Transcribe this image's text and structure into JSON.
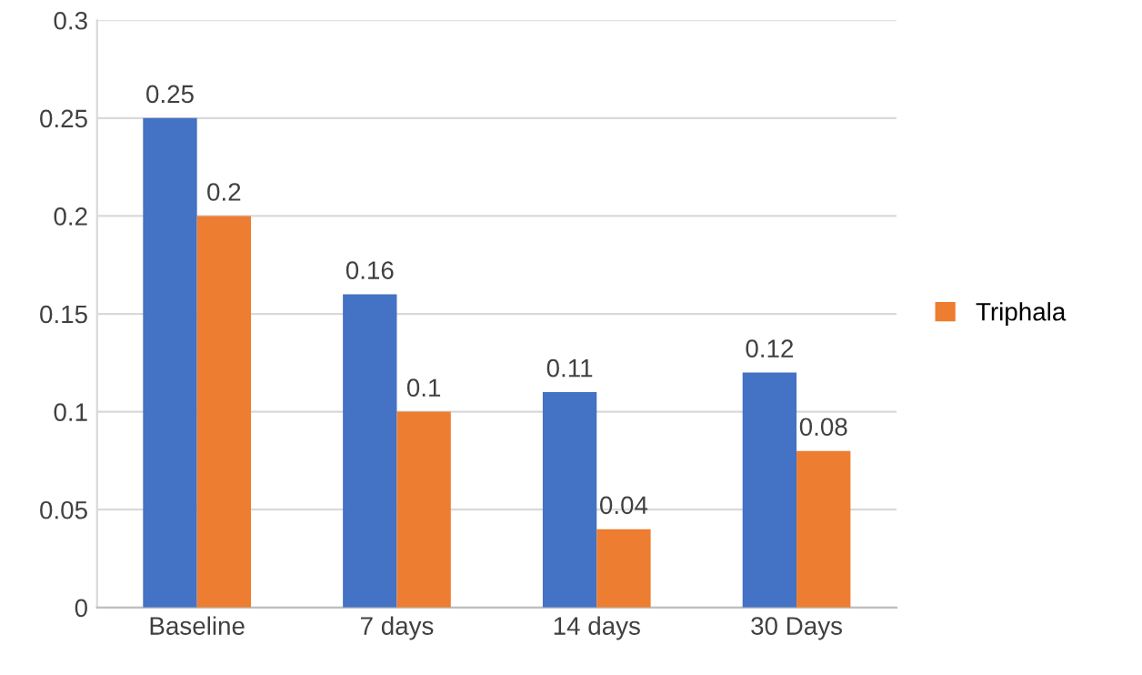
{
  "chart_data": {
    "type": "bar",
    "categories": [
      "Baseline",
      "7 days",
      "14 days",
      "30 Days"
    ],
    "series": [
      {
        "color": "#4472c4",
        "values": [
          0.25,
          0.16,
          0.11,
          0.12
        ]
      },
      {
        "name": "Triphala",
        "color": "#ed7d31",
        "values": [
          0.2,
          0.1,
          0.04,
          0.08
        ]
      }
    ],
    "ylim": [
      0,
      0.3
    ],
    "yticks": [
      0,
      0.05,
      0.1,
      0.15,
      0.2,
      0.25,
      0.3
    ],
    "grid": "y",
    "legend": "right",
    "data_labels": true
  }
}
